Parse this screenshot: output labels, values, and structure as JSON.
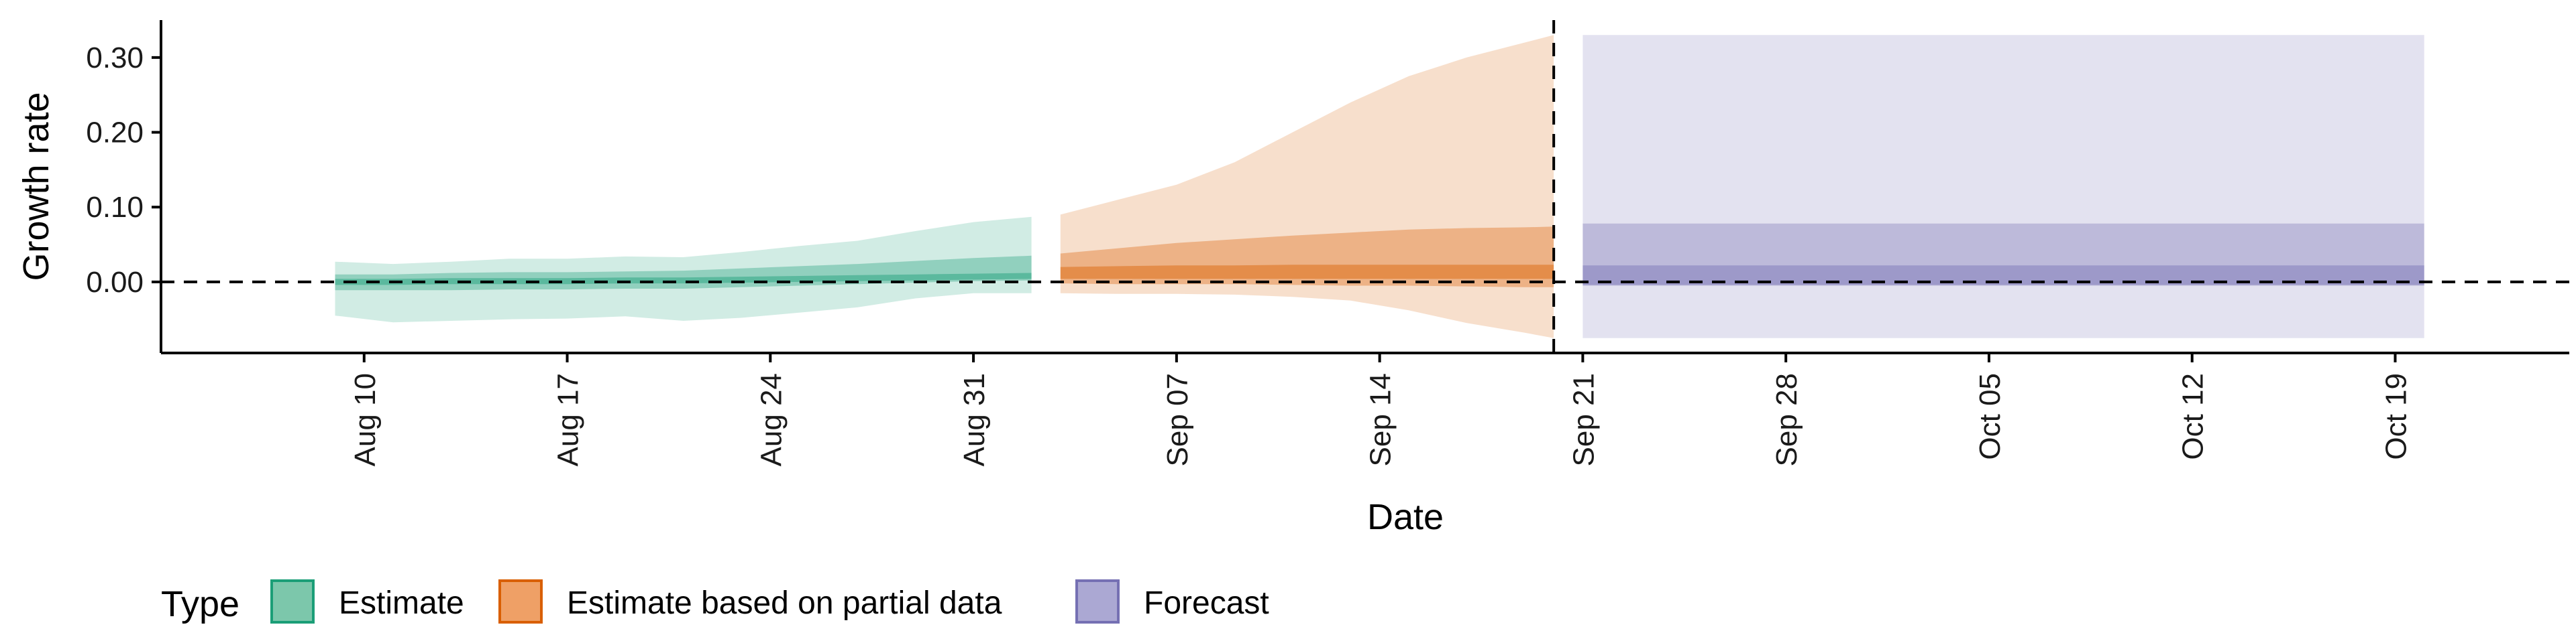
{
  "chart_data": {
    "type": "area",
    "title": "",
    "xlabel": "Date",
    "ylabel": "Growth rate",
    "x_type": "date",
    "xlim": [
      "2020-08-03",
      "2020-10-25"
    ],
    "ylim": [
      -0.095,
      0.35
    ],
    "yticks": [
      0.0,
      0.1,
      0.2,
      0.3
    ],
    "ytick_labels": [
      "0.00",
      "0.10",
      "0.20",
      "0.30"
    ],
    "xticks": [
      "2020-08-10",
      "2020-08-17",
      "2020-08-24",
      "2020-08-31",
      "2020-09-07",
      "2020-09-14",
      "2020-09-21",
      "2020-09-28",
      "2020-10-05",
      "2020-10-12",
      "2020-10-19"
    ],
    "xtick_labels": [
      "Aug 10",
      "Aug 17",
      "Aug 24",
      "Aug 31",
      "Sep 07",
      "Sep 14",
      "Sep 21",
      "Sep 28",
      "Oct 05",
      "Oct 12",
      "Oct 19"
    ],
    "hline_y": 0,
    "vline_x": "2020-09-20",
    "grid": false,
    "legend": {
      "title": "Type",
      "position": "bottom-left",
      "items": [
        {
          "label": "Estimate",
          "fill": "#7cc7ab",
          "stroke": "#1b9e77"
        },
        {
          "label": "Estimate based on partial data",
          "fill": "#efa066",
          "stroke": "#d95f02"
        },
        {
          "label": "Forecast",
          "fill": "#aba8d3",
          "stroke": "#7570b3"
        }
      ]
    },
    "series": [
      {
        "name": "Estimate",
        "color": "#1b9e77",
        "dates": [
          "2020-08-09",
          "2020-08-11",
          "2020-08-13",
          "2020-08-15",
          "2020-08-17",
          "2020-08-19",
          "2020-08-21",
          "2020-08-23",
          "2020-08-25",
          "2020-08-27",
          "2020-08-29",
          "2020-08-31",
          "2020-09-02"
        ],
        "lower_90": [
          -0.045,
          -0.054,
          -0.052,
          -0.05,
          -0.049,
          -0.046,
          -0.052,
          -0.048,
          -0.041,
          -0.034,
          -0.022,
          -0.015,
          -0.015
        ],
        "upper_90": [
          0.027,
          0.024,
          0.027,
          0.031,
          0.031,
          0.034,
          0.033,
          0.04,
          0.048,
          0.055,
          0.068,
          0.08,
          0.087
        ],
        "lower_50": [
          -0.011,
          -0.011,
          -0.011,
          -0.01,
          -0.01,
          -0.009,
          -0.009,
          -0.007,
          -0.005,
          -0.003,
          -0.001,
          0.001,
          0.002
        ],
        "upper_50": [
          0.01,
          0.01,
          0.012,
          0.013,
          0.013,
          0.014,
          0.015,
          0.018,
          0.021,
          0.024,
          0.028,
          0.032,
          0.035
        ],
        "lower_20": [
          -0.004,
          -0.004,
          -0.003,
          -0.003,
          -0.003,
          -0.002,
          -0.002,
          -0.001,
          0.0,
          0.001,
          0.002,
          0.003,
          0.004
        ],
        "upper_20": [
          0.004,
          0.004,
          0.005,
          0.005,
          0.005,
          0.006,
          0.006,
          0.007,
          0.008,
          0.009,
          0.01,
          0.011,
          0.012
        ]
      },
      {
        "name": "Estimate based on partial data",
        "color": "#d95f02",
        "dates": [
          "2020-09-03",
          "2020-09-05",
          "2020-09-07",
          "2020-09-09",
          "2020-09-11",
          "2020-09-13",
          "2020-09-15",
          "2020-09-17",
          "2020-09-19",
          "2020-09-20"
        ],
        "lower_90": [
          -0.015,
          -0.016,
          -0.016,
          -0.017,
          -0.02,
          -0.025,
          -0.038,
          -0.055,
          -0.068,
          -0.075
        ],
        "upper_90": [
          0.09,
          0.11,
          0.13,
          0.16,
          0.2,
          0.24,
          0.275,
          0.3,
          0.32,
          0.33
        ],
        "lower_50": [
          -0.002,
          -0.003,
          -0.003,
          -0.003,
          -0.004,
          -0.005,
          -0.005,
          -0.006,
          -0.007,
          -0.007
        ],
        "upper_50": [
          0.038,
          0.045,
          0.052,
          0.057,
          0.062,
          0.066,
          0.07,
          0.072,
          0.073,
          0.074
        ],
        "lower_20": [
          0.004,
          0.004,
          0.004,
          0.004,
          0.004,
          0.004,
          0.004,
          0.004,
          0.004,
          0.004
        ],
        "upper_20": [
          0.02,
          0.021,
          0.022,
          0.022,
          0.023,
          0.023,
          0.023,
          0.023,
          0.023,
          0.023
        ]
      },
      {
        "name": "Forecast",
        "color": "#7570b3",
        "dates": [
          "2020-09-21",
          "2020-10-20"
        ],
        "lower_90": [
          -0.075,
          -0.075
        ],
        "upper_90": [
          0.33,
          0.33
        ],
        "lower_50": [
          -0.005,
          -0.005
        ],
        "upper_50": [
          0.078,
          0.078
        ],
        "lower_20": [
          -0.004,
          -0.004
        ],
        "upper_20": [
          0.022,
          0.022
        ]
      }
    ]
  }
}
